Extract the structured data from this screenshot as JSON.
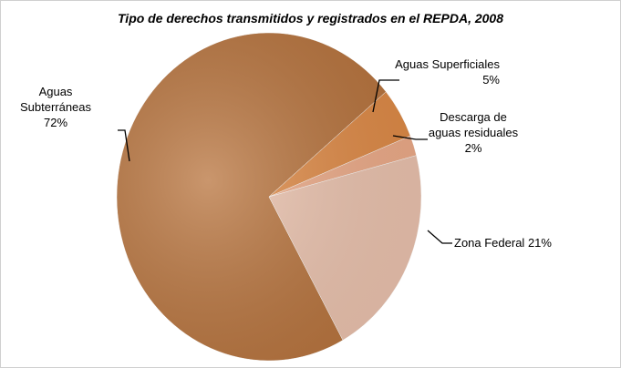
{
  "chart_data": {
    "type": "pie",
    "title": "Tipo de derechos transmitidos y registrados en el REPDA, 2008",
    "categories": [
      "Aguas Subterráneas",
      "Aguas Superficiales",
      "Descarga de aguas residuales",
      "Zona Federal"
    ],
    "values": [
      72,
      5,
      2,
      21
    ],
    "value_labels": [
      "72%",
      "5%",
      "2%",
      "21%"
    ],
    "colors": [
      "#b8733c",
      "#e08a45",
      "#eeab88",
      "#ecc3ae"
    ]
  }
}
